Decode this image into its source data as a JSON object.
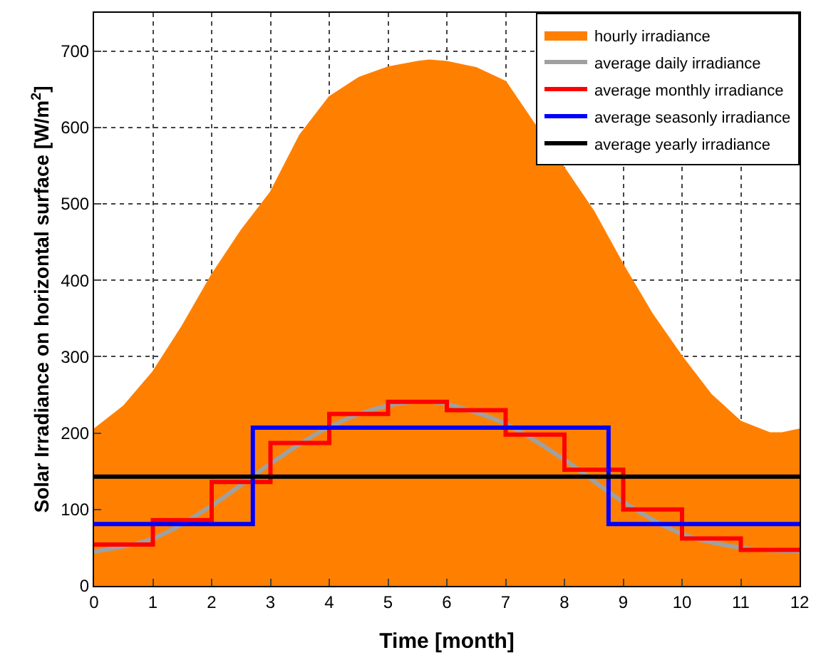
{
  "chart_data": {
    "type": "line",
    "xlabel": "Time [month]",
    "ylabel": "Solar Irradiance on horizontal surface [W/m$^{2}$]",
    "xlim": [
      0,
      12
    ],
    "ylim": [
      0,
      750
    ],
    "xticks": [
      0,
      1,
      2,
      3,
      4,
      5,
      6,
      7,
      8,
      9,
      10,
      11,
      12
    ],
    "yticks": [
      0,
      100,
      200,
      300,
      400,
      500,
      600,
      700
    ],
    "grid": true,
    "legend": "top right",
    "series": [
      {
        "name": "hourly irradiance",
        "type": "area",
        "color": "#ff8000",
        "x": [
          0,
          0.5,
          1,
          1.5,
          2,
          2.5,
          3,
          3.5,
          4,
          4.5,
          5,
          5.5,
          5.7,
          6,
          6.5,
          7,
          8.5,
          9,
          9.5,
          10,
          10.5,
          11,
          11.5,
          11.7,
          12
        ],
        "values": [
          205,
          235,
          280,
          340,
          407,
          465,
          515,
          590,
          640,
          665,
          679,
          686,
          688,
          686,
          678,
          660,
          490,
          420,
          355,
          300,
          250,
          215,
          200,
          200,
          205
        ]
      },
      {
        "name": "average daily irradiance",
        "color": "#a0a0a0",
        "x": [
          0,
          1,
          2,
          3,
          4,
          5,
          5.7,
          6,
          7,
          8,
          9,
          10,
          11,
          12
        ],
        "values": [
          45,
          62,
          105,
          160,
          208,
          236,
          241,
          238,
          212,
          165,
          110,
          68,
          50,
          45
        ]
      },
      {
        "name": "average monthly irradiance",
        "type": "step",
        "color": "#ff0000",
        "x": [
          0,
          1,
          2,
          3,
          4,
          5,
          6,
          7,
          8,
          9,
          10,
          11,
          12
        ],
        "values": [
          54,
          86,
          136,
          187,
          225,
          241,
          230,
          198,
          152,
          100,
          62,
          47,
          47
        ]
      },
      {
        "name": "average seasonly irradiance",
        "type": "step",
        "color": "#0000ff",
        "x": [
          0,
          2.7,
          8.75,
          12
        ],
        "values": [
          81,
          207,
          81,
          81
        ]
      },
      {
        "name": "average yearly irradiance",
        "color": "#000000",
        "x": [
          0,
          12
        ],
        "values": [
          143,
          143
        ]
      }
    ]
  }
}
